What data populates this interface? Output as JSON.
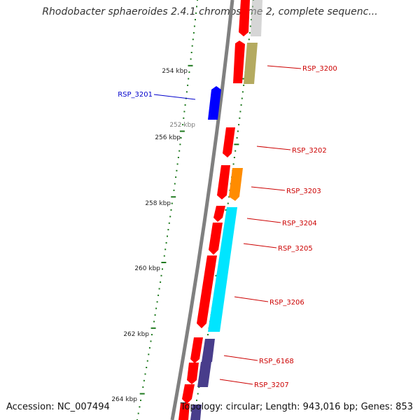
{
  "title": "Rhodobacter sphaeroides 2.4.1 chromosome 2, complete sequenc...",
  "footer": {
    "accession": "Accession: NC_007494",
    "stats": "Topology: circular; Length: 943,016 bp; Genes: 853"
  },
  "colors": {
    "backbone": "#808080",
    "tick": "#1f7a1f",
    "feature_label": "#cc0000",
    "highlight_label": "#0000cc",
    "red_cds": "#ff0000",
    "blue_cds": "#0000ff",
    "grey_cds": "#b4b4b4",
    "olive_cds": "#b4aa60",
    "orange_cds": "#ff8c00",
    "cyan_cds": "#00e5ff",
    "purple_cds": "#483d8b"
  },
  "scale_labels": [
    "252 kbp",
    "254 kbp",
    "256 kbp",
    "258 kbp",
    "260 kbp",
    "262 kbp",
    "264 kbp"
  ],
  "feature_labels": [
    "RSP_3200",
    "RSP_3201",
    "RSP_3202",
    "RSP_3203",
    "RSP_3204",
    "RSP_3205",
    "RSP_3206",
    "RSP_6168",
    "RSP_3207"
  ]
}
